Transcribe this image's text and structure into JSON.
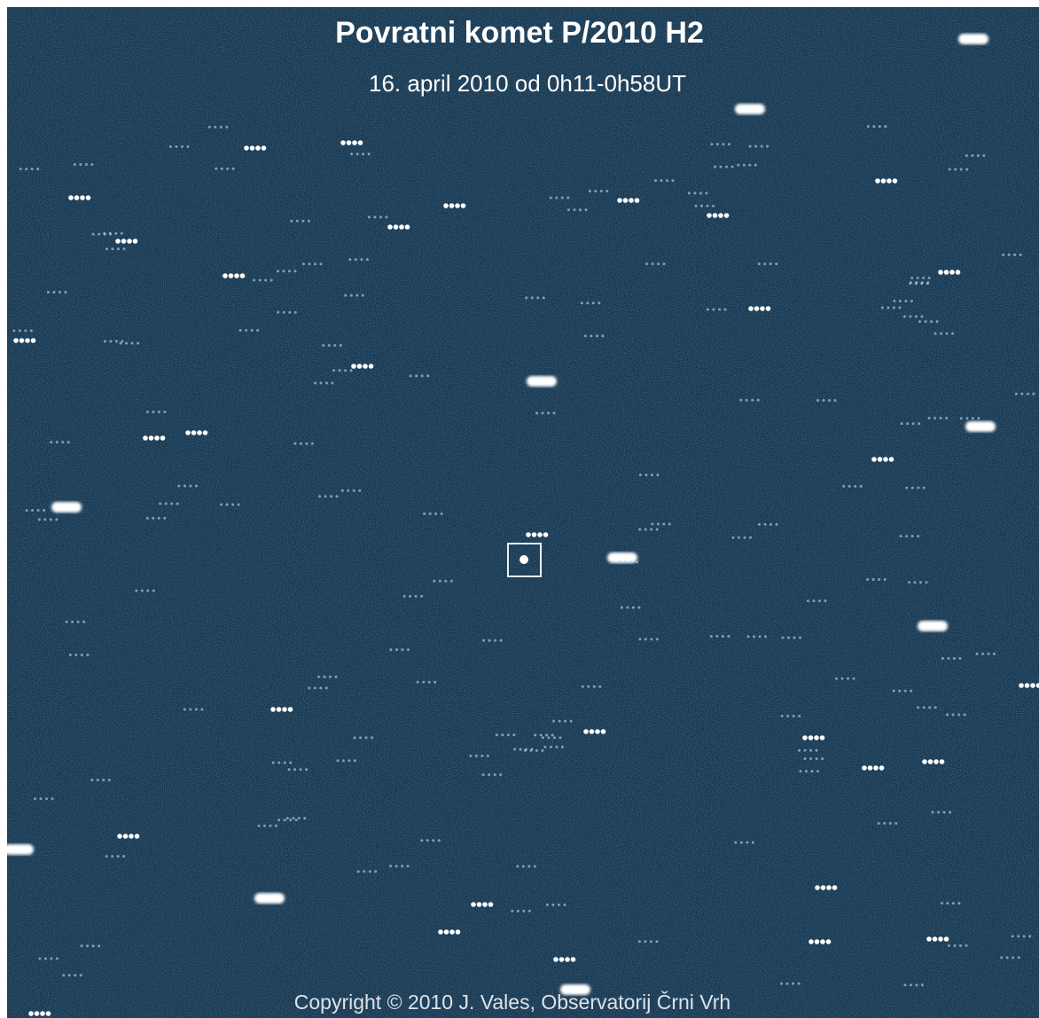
{
  "image": {
    "title": "Povratni komet P/2010 H2",
    "subtitle": "16. april 2010 od 0h11-0h58UT",
    "copyright": "Copyright © 2010 J. Vales, Observatorij Črni Vrh"
  }
}
